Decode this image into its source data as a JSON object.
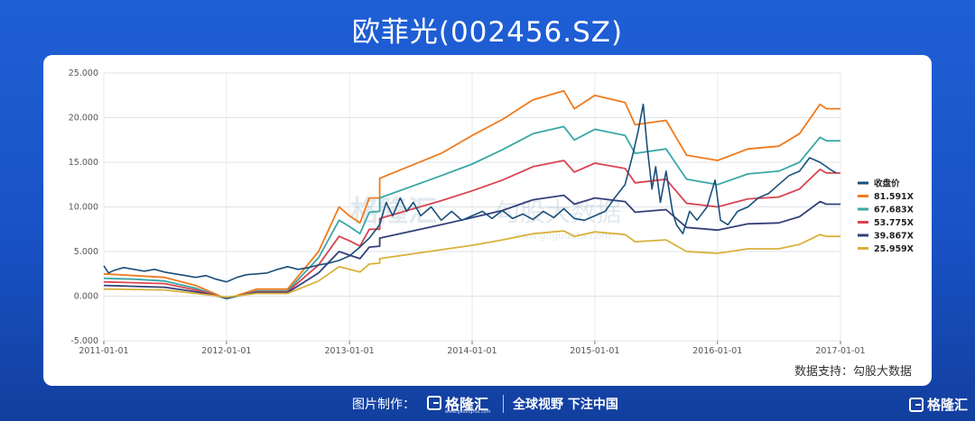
{
  "page": {
    "title": "欧菲光(002456.SZ)"
  },
  "chart_data": {
    "type": "line",
    "title": "欧菲光(002456.SZ)",
    "xlabel": "",
    "ylabel": "",
    "x_ticks": [
      "2011-01-01",
      "2012-01-01",
      "2013-01-01",
      "2014-01-01",
      "2015-01-01",
      "2016-01-01",
      "2017-01-01"
    ],
    "y_ticks": [
      "25.000",
      "20.000",
      "15.000",
      "10.000",
      "5.000",
      "0.000",
      "-5.000"
    ],
    "xlim": [
      "2011-01-01",
      "2017-01-01"
    ],
    "ylim": [
      -5,
      25
    ],
    "grid": true,
    "legend_position": "right",
    "watermark": [
      "格隆汇",
      "勾股大数据",
      "www.gogudata.com"
    ],
    "series": [
      {
        "name": "收盘价",
        "color": "#1a4f7a",
        "points": [
          [
            "2011-01-01",
            3.4
          ],
          [
            "2011-01-15",
            2.6
          ],
          [
            "2011-02-01",
            2.9
          ],
          [
            "2011-03-01",
            3.2
          ],
          [
            "2011-04-01",
            3.0
          ],
          [
            "2011-05-01",
            2.8
          ],
          [
            "2011-06-01",
            3.0
          ],
          [
            "2011-07-01",
            2.7
          ],
          [
            "2011-08-01",
            2.5
          ],
          [
            "2011-09-01",
            2.3
          ],
          [
            "2011-10-01",
            2.1
          ],
          [
            "2011-11-01",
            2.3
          ],
          [
            "2011-12-01",
            1.9
          ],
          [
            "2012-01-01",
            1.6
          ],
          [
            "2012-02-01",
            2.1
          ],
          [
            "2012-03-01",
            2.4
          ],
          [
            "2012-04-01",
            2.5
          ],
          [
            "2012-05-01",
            2.6
          ],
          [
            "2012-06-01",
            3.0
          ],
          [
            "2012-07-01",
            3.3
          ],
          [
            "2012-08-01",
            3.0
          ],
          [
            "2012-09-01",
            3.2
          ],
          [
            "2012-10-01",
            3.5
          ],
          [
            "2012-11-01",
            3.7
          ],
          [
            "2012-12-01",
            4.0
          ],
          [
            "2013-01-01",
            4.5
          ],
          [
            "2013-02-01",
            5.5
          ],
          [
            "2013-03-01",
            6.5
          ],
          [
            "2013-04-01",
            8.0
          ],
          [
            "2013-04-20",
            10.5
          ],
          [
            "2013-05-10",
            9.0
          ],
          [
            "2013-06-01",
            11.0
          ],
          [
            "2013-06-20",
            9.5
          ],
          [
            "2013-07-10",
            10.5
          ],
          [
            "2013-08-01",
            9.0
          ],
          [
            "2013-09-01",
            10.0
          ],
          [
            "2013-10-01",
            8.5
          ],
          [
            "2013-11-01",
            9.5
          ],
          [
            "2013-12-01",
            8.5
          ],
          [
            "2014-01-01",
            9.0
          ],
          [
            "2014-02-01",
            9.5
          ],
          [
            "2014-03-01",
            8.7
          ],
          [
            "2014-04-01",
            9.6
          ],
          [
            "2014-05-01",
            8.7
          ],
          [
            "2014-06-01",
            9.2
          ],
          [
            "2014-07-01",
            8.6
          ],
          [
            "2014-08-01",
            9.5
          ],
          [
            "2014-09-01",
            8.8
          ],
          [
            "2014-10-01",
            9.8
          ],
          [
            "2014-11-01",
            8.7
          ],
          [
            "2014-12-01",
            8.5
          ],
          [
            "2015-01-01",
            9.0
          ],
          [
            "2015-02-01",
            9.5
          ],
          [
            "2015-03-01",
            11.0
          ],
          [
            "2015-04-01",
            12.5
          ],
          [
            "2015-04-25",
            16.0
          ],
          [
            "2015-05-10",
            18.5
          ],
          [
            "2015-05-25",
            21.5
          ],
          [
            "2015-06-05",
            17.0
          ],
          [
            "2015-06-20",
            12.0
          ],
          [
            "2015-07-01",
            14.5
          ],
          [
            "2015-07-15",
            10.5
          ],
          [
            "2015-08-01",
            14.0
          ],
          [
            "2015-08-20",
            9.5
          ],
          [
            "2015-09-01",
            8.0
          ],
          [
            "2015-09-20",
            7.0
          ],
          [
            "2015-10-10",
            9.5
          ],
          [
            "2015-11-01",
            8.5
          ],
          [
            "2015-12-01",
            10.0
          ],
          [
            "2015-12-25",
            13.0
          ],
          [
            "2016-01-10",
            8.5
          ],
          [
            "2016-02-01",
            8.0
          ],
          [
            "2016-03-01",
            9.5
          ],
          [
            "2016-04-01",
            10.0
          ],
          [
            "2016-05-01",
            11.0
          ],
          [
            "2016-06-01",
            11.5
          ],
          [
            "2016-07-01",
            12.5
          ],
          [
            "2016-08-01",
            13.5
          ],
          [
            "2016-09-01",
            14.0
          ],
          [
            "2016-10-01",
            15.5
          ],
          [
            "2016-11-01",
            15.0
          ],
          [
            "2016-11-20",
            14.5
          ],
          [
            "2016-12-01",
            14.2
          ],
          [
            "2016-12-20",
            13.8
          ]
        ]
      },
      {
        "name": "81.591X",
        "color": "#f07a1c",
        "points": [
          [
            "2011-01-01",
            2.5
          ],
          [
            "2011-04-01",
            2.3
          ],
          [
            "2011-07-01",
            2.1
          ],
          [
            "2011-10-01",
            1.2
          ],
          [
            "2012-01-01",
            -0.3
          ],
          [
            "2012-04-01",
            0.8
          ],
          [
            "2012-07-01",
            0.8
          ],
          [
            "2012-10-01",
            5.0
          ],
          [
            "2012-12-01",
            10.0
          ],
          [
            "2013-01-01",
            9.0
          ],
          [
            "2013-02-01",
            8.2
          ],
          [
            "2013-03-01",
            11.0
          ],
          [
            "2013-04-01",
            11.0
          ],
          [
            "2013-04-01",
            13.2
          ],
          [
            "2013-10-01",
            16.0
          ],
          [
            "2014-01-01",
            18.0
          ],
          [
            "2014-04-01",
            19.8
          ],
          [
            "2014-07-01",
            22.0
          ],
          [
            "2014-10-01",
            23.0
          ],
          [
            "2014-11-01",
            21.0
          ],
          [
            "2015-01-01",
            22.5
          ],
          [
            "2015-04-01",
            21.7
          ],
          [
            "2015-05-01",
            19.2
          ],
          [
            "2015-08-01",
            19.7
          ],
          [
            "2015-10-01",
            15.8
          ],
          [
            "2016-01-01",
            15.2
          ],
          [
            "2016-04-01",
            16.5
          ],
          [
            "2016-07-01",
            16.8
          ],
          [
            "2016-09-01",
            18.2
          ],
          [
            "2016-11-01",
            21.5
          ],
          [
            "2016-11-20",
            21.0
          ],
          [
            "2017-01-01",
            21.0
          ]
        ]
      },
      {
        "name": "67.683X",
        "color": "#3aa7a7",
        "points": [
          [
            "2011-01-01",
            2.0
          ],
          [
            "2011-04-01",
            1.9
          ],
          [
            "2011-07-01",
            1.7
          ],
          [
            "2011-10-01",
            0.9
          ],
          [
            "2012-01-01",
            -0.3
          ],
          [
            "2012-04-01",
            0.6
          ],
          [
            "2012-07-01",
            0.6
          ],
          [
            "2012-10-01",
            4.3
          ],
          [
            "2012-12-01",
            8.5
          ],
          [
            "2013-01-01",
            7.8
          ],
          [
            "2013-02-01",
            7.0
          ],
          [
            "2013-03-01",
            9.4
          ],
          [
            "2013-04-01",
            9.5
          ],
          [
            "2013-04-01",
            11.0
          ],
          [
            "2013-10-01",
            13.5
          ],
          [
            "2014-01-01",
            14.8
          ],
          [
            "2014-04-01",
            16.4
          ],
          [
            "2014-07-01",
            18.2
          ],
          [
            "2014-10-01",
            19.0
          ],
          [
            "2014-11-01",
            17.5
          ],
          [
            "2015-01-01",
            18.7
          ],
          [
            "2015-04-01",
            18.0
          ],
          [
            "2015-05-01",
            16.0
          ],
          [
            "2015-08-01",
            16.5
          ],
          [
            "2015-10-01",
            13.1
          ],
          [
            "2016-01-01",
            12.5
          ],
          [
            "2016-04-01",
            13.7
          ],
          [
            "2016-07-01",
            14.0
          ],
          [
            "2016-09-01",
            15.0
          ],
          [
            "2016-11-01",
            17.8
          ],
          [
            "2016-11-20",
            17.4
          ],
          [
            "2017-01-01",
            17.4
          ]
        ]
      },
      {
        "name": "53.775X",
        "color": "#d94450",
        "points": [
          [
            "2011-01-01",
            1.6
          ],
          [
            "2011-04-01",
            1.5
          ],
          [
            "2011-07-01",
            1.4
          ],
          [
            "2011-10-01",
            0.7
          ],
          [
            "2012-01-01",
            -0.2
          ],
          [
            "2012-04-01",
            0.5
          ],
          [
            "2012-07-01",
            0.5
          ],
          [
            "2012-10-01",
            3.5
          ],
          [
            "2012-12-01",
            6.7
          ],
          [
            "2013-01-01",
            6.2
          ],
          [
            "2013-02-01",
            5.6
          ],
          [
            "2013-03-01",
            7.5
          ],
          [
            "2013-04-01",
            7.5
          ],
          [
            "2013-04-01",
            8.7
          ],
          [
            "2013-10-01",
            10.7
          ],
          [
            "2014-01-01",
            11.8
          ],
          [
            "2014-04-01",
            13.0
          ],
          [
            "2014-07-01",
            14.5
          ],
          [
            "2014-10-01",
            15.2
          ],
          [
            "2014-11-01",
            13.9
          ],
          [
            "2015-01-01",
            14.9
          ],
          [
            "2015-04-01",
            14.3
          ],
          [
            "2015-05-01",
            12.7
          ],
          [
            "2015-08-01",
            13.1
          ],
          [
            "2015-10-01",
            10.4
          ],
          [
            "2016-01-01",
            10.0
          ],
          [
            "2016-04-01",
            10.9
          ],
          [
            "2016-07-01",
            11.1
          ],
          [
            "2016-09-01",
            12.0
          ],
          [
            "2016-11-01",
            14.2
          ],
          [
            "2016-11-20",
            13.8
          ],
          [
            "2017-01-01",
            13.8
          ]
        ]
      },
      {
        "name": "39.867X",
        "color": "#33407a",
        "points": [
          [
            "2011-01-01",
            1.2
          ],
          [
            "2011-04-01",
            1.1
          ],
          [
            "2011-07-01",
            1.0
          ],
          [
            "2011-10-01",
            0.5
          ],
          [
            "2012-01-01",
            -0.2
          ],
          [
            "2012-04-01",
            0.4
          ],
          [
            "2012-07-01",
            0.4
          ],
          [
            "2012-10-01",
            2.6
          ],
          [
            "2012-12-01",
            5.0
          ],
          [
            "2013-01-01",
            4.6
          ],
          [
            "2013-02-01",
            4.2
          ],
          [
            "2013-03-01",
            5.5
          ],
          [
            "2013-04-01",
            5.6
          ],
          [
            "2013-04-01",
            6.5
          ],
          [
            "2013-10-01",
            8.0
          ],
          [
            "2014-01-01",
            8.8
          ],
          [
            "2014-04-01",
            9.6
          ],
          [
            "2014-07-01",
            10.8
          ],
          [
            "2014-10-01",
            11.3
          ],
          [
            "2014-11-01",
            10.3
          ],
          [
            "2015-01-01",
            11.0
          ],
          [
            "2015-04-01",
            10.6
          ],
          [
            "2015-05-01",
            9.4
          ],
          [
            "2015-08-01",
            9.7
          ],
          [
            "2015-10-01",
            7.7
          ],
          [
            "2016-01-01",
            7.4
          ],
          [
            "2016-04-01",
            8.1
          ],
          [
            "2016-07-01",
            8.2
          ],
          [
            "2016-09-01",
            8.9
          ],
          [
            "2016-11-01",
            10.6
          ],
          [
            "2016-11-20",
            10.3
          ],
          [
            "2017-01-01",
            10.3
          ]
        ]
      },
      {
        "name": "25.959X",
        "color": "#d9b13b",
        "points": [
          [
            "2011-01-01",
            0.8
          ],
          [
            "2011-04-01",
            0.75
          ],
          [
            "2011-07-01",
            0.7
          ],
          [
            "2011-10-01",
            0.3
          ],
          [
            "2012-01-01",
            -0.1
          ],
          [
            "2012-04-01",
            0.3
          ],
          [
            "2012-07-01",
            0.3
          ],
          [
            "2012-10-01",
            1.7
          ],
          [
            "2012-12-01",
            3.3
          ],
          [
            "2013-01-01",
            3.0
          ],
          [
            "2013-02-01",
            2.7
          ],
          [
            "2013-03-01",
            3.6
          ],
          [
            "2013-04-01",
            3.7
          ],
          [
            "2013-04-01",
            4.2
          ],
          [
            "2013-10-01",
            5.2
          ],
          [
            "2014-01-01",
            5.7
          ],
          [
            "2014-04-01",
            6.3
          ],
          [
            "2014-07-01",
            7.0
          ],
          [
            "2014-10-01",
            7.3
          ],
          [
            "2014-11-01",
            6.7
          ],
          [
            "2015-01-01",
            7.2
          ],
          [
            "2015-04-01",
            6.9
          ],
          [
            "2015-05-01",
            6.1
          ],
          [
            "2015-08-01",
            6.3
          ],
          [
            "2015-10-01",
            5.0
          ],
          [
            "2016-01-01",
            4.8
          ],
          [
            "2016-04-01",
            5.3
          ],
          [
            "2016-07-01",
            5.3
          ],
          [
            "2016-09-01",
            5.8
          ],
          [
            "2016-11-01",
            6.9
          ],
          [
            "2016-11-20",
            6.7
          ],
          [
            "2017-01-01",
            6.7
          ]
        ]
      }
    ]
  },
  "source": {
    "text": "数据支持：勾股大数据"
  },
  "footer": {
    "maker_label": "图片制作：",
    "logo_name": "格隆汇",
    "logo_url": "www.gelonghui.com",
    "slogan": "全球视野 下注中国",
    "corner_logo_name": "格隆汇"
  }
}
